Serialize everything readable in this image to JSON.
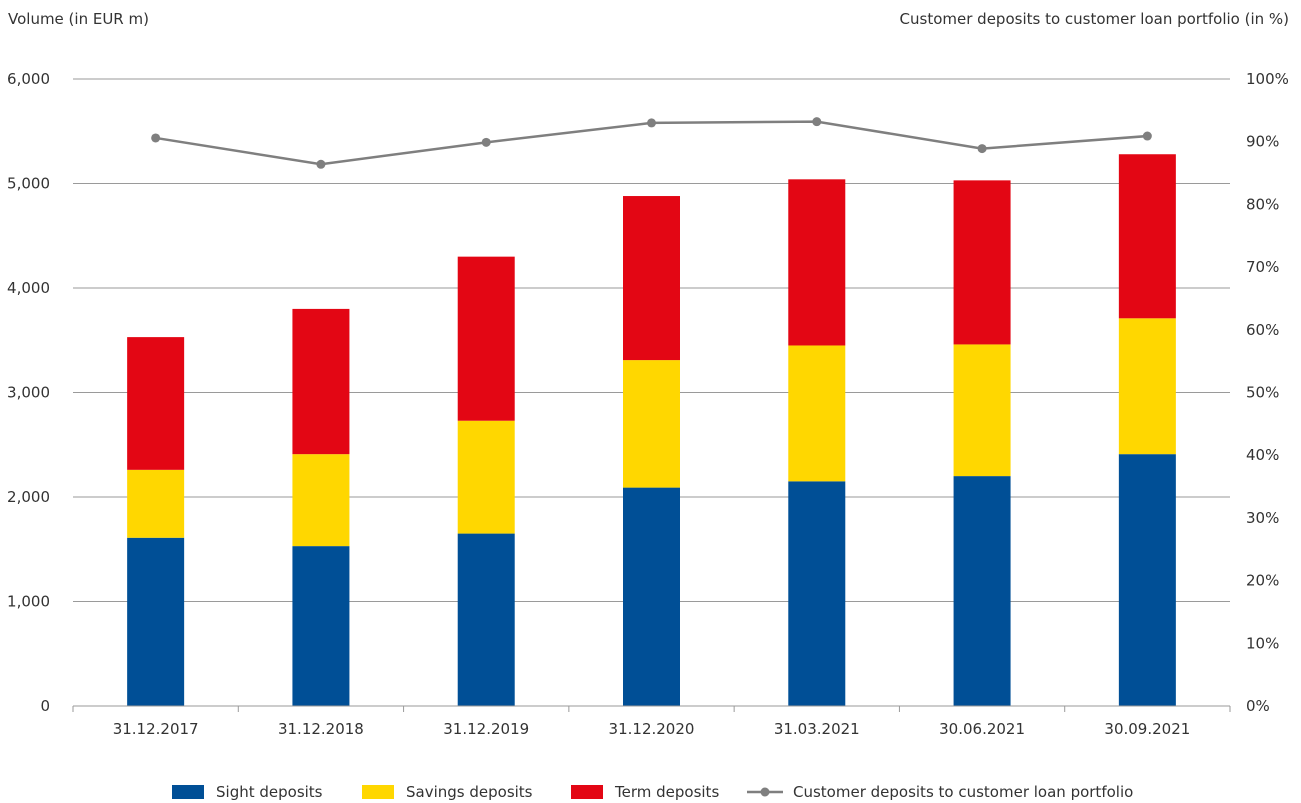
{
  "chart_data": {
    "type": "bar",
    "stacked": true,
    "ylabel_left": "Volume (in EUR m)",
    "ylabel_right": "Customer deposits to customer loan portfolio (in %)",
    "ylim_left": [
      0,
      6000
    ],
    "ylim_right": [
      0,
      100
    ],
    "yticks_left": [
      "0",
      "1,000",
      "2,000",
      "3,000",
      "4,000",
      "5,000",
      "6,000"
    ],
    "yticks_right": [
      "0%",
      "10%",
      "20%",
      "30%",
      "40%",
      "50%",
      "60%",
      "70%",
      "80%",
      "90%",
      "100%"
    ],
    "grid": true,
    "legend_position": "bottom",
    "categories": [
      "31.12.2017",
      "31.12.2018",
      "31.12.2019",
      "31.12.2020",
      "31.03.2021",
      "30.06.2021",
      "30.09.2021"
    ],
    "series": [
      {
        "name": "Sight deposits",
        "type": "bar",
        "axis": "left",
        "color": "#004f96",
        "values": [
          1610,
          1530,
          1650,
          2090,
          2150,
          2200,
          2410
        ]
      },
      {
        "name": "Savings deposits",
        "type": "bar",
        "axis": "left",
        "color": "#ffd700",
        "values": [
          650,
          880,
          1080,
          1220,
          1300,
          1260,
          1300
        ]
      },
      {
        "name": "Term deposits",
        "type": "bar",
        "axis": "left",
        "color": "#e30614",
        "values": [
          1270,
          1390,
          1570,
          1570,
          1590,
          1570,
          1570
        ]
      },
      {
        "name": "Customer deposits to customer loan portfolio",
        "type": "line",
        "axis": "right",
        "color": "#7f7f7f",
        "values": [
          90.6,
          86.4,
          89.9,
          93.0,
          93.2,
          88.9,
          90.9
        ]
      }
    ]
  }
}
